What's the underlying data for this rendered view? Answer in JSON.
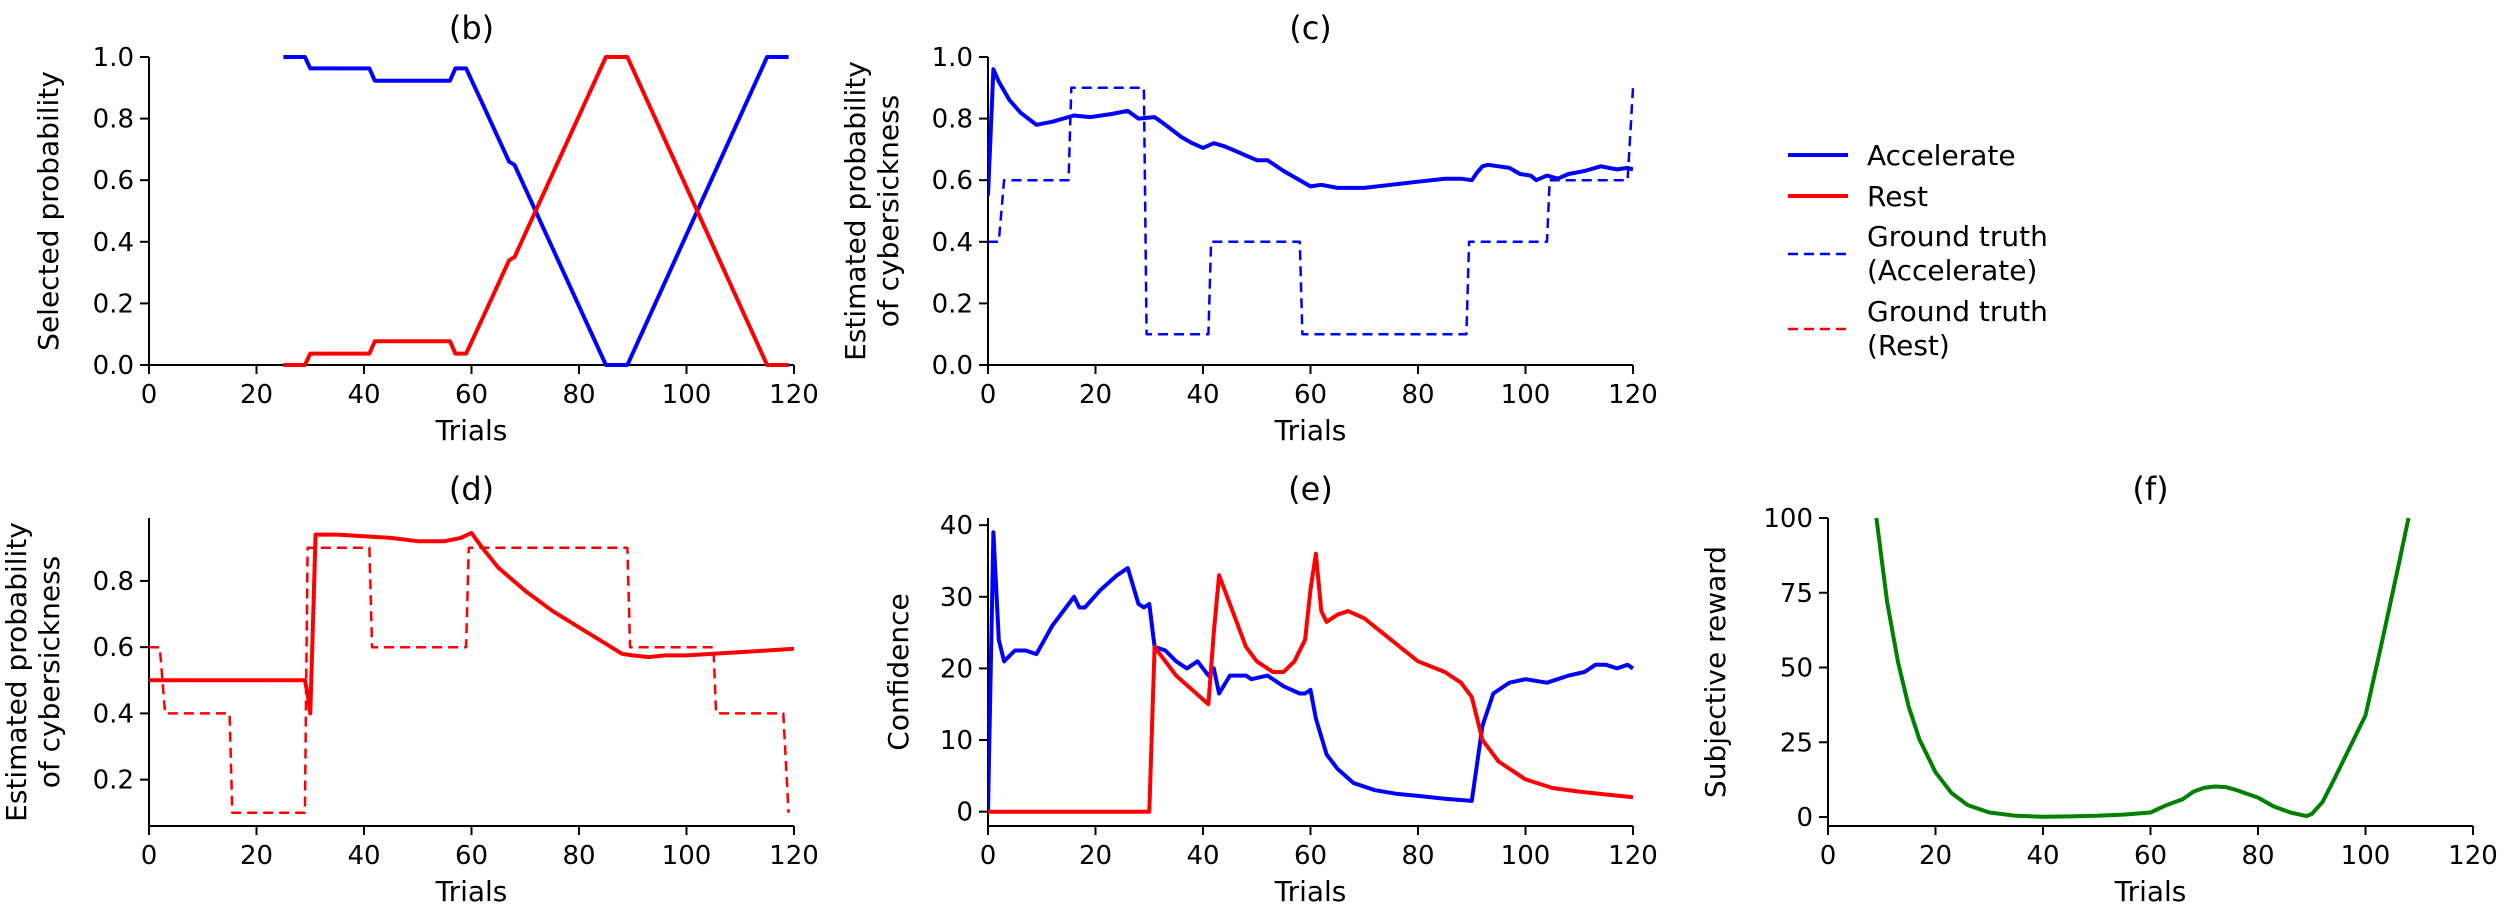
{
  "chart_data": [
    {
      "id": "b",
      "type": "line",
      "title": "(b)",
      "xlabel": "Trials",
      "ylabel": "Selected probability",
      "xlim": [
        0,
        120
      ],
      "ylim": [
        0,
        1
      ],
      "xticks": [
        "0",
        "20",
        "40",
        "60",
        "80",
        "100",
        "120"
      ],
      "yticks": [
        "0.0",
        "0.2",
        "0.4",
        "0.6",
        "0.8",
        "1.0"
      ],
      "series": [
        {
          "color": "#0000ff",
          "dash": "solid",
          "x": [
            25,
            29,
            30,
            41,
            42,
            56,
            57,
            59,
            62,
            67,
            68,
            85,
            89,
            115,
            119
          ],
          "y": [
            1.0,
            1.0,
            0.963,
            0.963,
            0.923,
            0.923,
            0.963,
            0.963,
            0.85,
            0.66,
            0.65,
            0.0,
            0.0,
            1.0,
            1.0
          ]
        },
        {
          "color": "#ff0000",
          "dash": "solid",
          "x": [
            25,
            29,
            30,
            41,
            42,
            56,
            57,
            59,
            62,
            67,
            68,
            85,
            89,
            115,
            119
          ],
          "y": [
            0.0,
            0.0,
            0.037,
            0.037,
            0.077,
            0.077,
            0.037,
            0.037,
            0.15,
            0.34,
            0.35,
            1.0,
            1.0,
            0.0,
            0.0
          ]
        }
      ]
    },
    {
      "id": "c",
      "type": "line",
      "title": "(c)",
      "xlabel": "Trials",
      "ylabel": [
        "Estimated probability",
        "of cybersickness"
      ],
      "xlim": [
        0,
        120
      ],
      "ylim": [
        0,
        1
      ],
      "xticks": [
        "0",
        "20",
        "40",
        "60",
        "80",
        "100",
        "120"
      ],
      "yticks": [
        "0.0",
        "0.2",
        "0.4",
        "0.6",
        "0.8",
        "1.0"
      ],
      "series": [
        {
          "color": "#0000ff",
          "dash": "solid",
          "x": [
            0,
            1,
            2,
            4,
            6,
            9,
            12,
            16,
            19,
            23,
            26,
            28,
            31,
            33,
            36,
            38,
            40,
            42,
            44,
            46,
            48,
            50,
            52,
            55,
            58,
            60,
            62,
            65,
            70,
            75,
            80,
            85,
            88,
            90,
            91,
            92,
            93,
            95,
            97,
            99,
            101,
            102,
            104,
            106,
            108,
            111,
            114,
            117,
            119,
            120
          ],
          "y": [
            0.55,
            0.96,
            0.92,
            0.86,
            0.82,
            0.78,
            0.79,
            0.81,
            0.805,
            0.815,
            0.825,
            0.8,
            0.805,
            0.78,
            0.74,
            0.72,
            0.705,
            0.72,
            0.71,
            0.695,
            0.68,
            0.665,
            0.665,
            0.63,
            0.6,
            0.58,
            0.585,
            0.575,
            0.575,
            0.585,
            0.595,
            0.605,
            0.605,
            0.6,
            0.625,
            0.645,
            0.65,
            0.645,
            0.64,
            0.62,
            0.615,
            0.6,
            0.615,
            0.605,
            0.62,
            0.63,
            0.645,
            0.635,
            0.64,
            0.635
          ]
        },
        {
          "color": "#0000ff",
          "dash": "dashed",
          "x": [
            0,
            2,
            3,
            15,
            15.5,
            29,
            29.5,
            41,
            41.5,
            58,
            58.5,
            89,
            89.5,
            104,
            104.5,
            119,
            120
          ],
          "y": [
            0.4,
            0.4,
            0.6,
            0.6,
            0.9,
            0.9,
            0.1,
            0.1,
            0.4,
            0.4,
            0.1,
            0.1,
            0.4,
            0.4,
            0.6,
            0.6,
            0.9
          ]
        }
      ]
    },
    {
      "id": "d",
      "type": "line",
      "title": "(d)",
      "xlabel": "Trials",
      "ylabel": [
        "Estimated probability",
        "of cybersickness"
      ],
      "xlim": [
        0,
        120
      ],
      "ylim": [
        0.06,
        0.99
      ],
      "xticks": [
        "0",
        "20",
        "40",
        "60",
        "80",
        "100",
        "120"
      ],
      "yticks": [
        "0.2",
        "0.4",
        "0.6",
        "0.8"
      ],
      "series": [
        {
          "color": "#ff0000",
          "dash": "solid",
          "x": [
            0,
            29,
            29.5,
            30,
            31,
            35,
            40,
            45,
            50,
            55,
            58,
            60,
            62,
            65,
            70,
            75,
            80,
            85,
            88,
            90,
            93,
            96,
            100,
            105,
            110,
            115,
            120
          ],
          "y": [
            0.5,
            0.5,
            0.46,
            0.4,
            0.94,
            0.94,
            0.935,
            0.93,
            0.92,
            0.92,
            0.93,
            0.945,
            0.9,
            0.84,
            0.77,
            0.71,
            0.66,
            0.61,
            0.58,
            0.575,
            0.57,
            0.575,
            0.575,
            0.58,
            0.585,
            0.59,
            0.595
          ]
        },
        {
          "color": "#ff0000",
          "dash": "dashed",
          "x": [
            0,
            2,
            3,
            15,
            15.5,
            29,
            29.5,
            41,
            41.5,
            59,
            59.5,
            89,
            89.5,
            105,
            105.5,
            118,
            119
          ],
          "y": [
            0.6,
            0.6,
            0.4,
            0.4,
            0.1,
            0.1,
            0.9,
            0.9,
            0.6,
            0.6,
            0.9,
            0.9,
            0.6,
            0.6,
            0.4,
            0.4,
            0.1
          ]
        }
      ]
    },
    {
      "id": "e",
      "type": "line",
      "title": "(e)",
      "xlabel": "Trials",
      "ylabel": "Confidence",
      "xlim": [
        0,
        120
      ],
      "ylim": [
        -2,
        41
      ],
      "xticks": [
        "0",
        "20",
        "40",
        "60",
        "80",
        "100",
        "120"
      ],
      "yticks": [
        "0",
        "10",
        "20",
        "30",
        "40"
      ],
      "series": [
        {
          "color": "#0000ff",
          "dash": "solid",
          "x": [
            0,
            1,
            2,
            3,
            5,
            7,
            9,
            12,
            15,
            16,
            17,
            18,
            21,
            24,
            26,
            28,
            29,
            30,
            31,
            33,
            35,
            37,
            39,
            41,
            42,
            43,
            45,
            48,
            49,
            52,
            55,
            58,
            59,
            60,
            61,
            63,
            65,
            68,
            72,
            76,
            80,
            85,
            90,
            92,
            94,
            97,
            100,
            104,
            108,
            111,
            113,
            115,
            117,
            119,
            120
          ],
          "y": [
            0,
            39,
            24,
            21,
            22.5,
            22.5,
            22,
            26,
            29,
            30,
            28.5,
            28.5,
            31,
            33,
            34,
            29,
            28.5,
            29,
            23,
            22.5,
            21,
            20,
            21,
            19,
            20,
            16.5,
            19,
            19,
            18.5,
            19,
            17.5,
            16.5,
            16.5,
            17,
            13,
            8,
            6,
            4,
            3,
            2.5,
            2.2,
            1.8,
            1.5,
            12,
            16.5,
            18,
            18.5,
            18,
            19,
            19.5,
            20.5,
            20.5,
            20,
            20.5,
            20
          ]
        },
        {
          "color": "#ff0000",
          "dash": "solid",
          "x": [
            0,
            30,
            31,
            33,
            35,
            38,
            41,
            42,
            43,
            45,
            48,
            50,
            53,
            55,
            57,
            59,
            60,
            61,
            62,
            63,
            65,
            67,
            70,
            75,
            80,
            85,
            88,
            90,
            92,
            95,
            100,
            105,
            110,
            115,
            120
          ],
          "y": [
            0,
            0,
            23,
            21,
            19,
            17,
            15,
            25,
            33,
            29,
            23,
            21,
            19.5,
            19.5,
            21,
            24,
            31,
            36,
            28,
            26.5,
            27.5,
            28,
            27,
            24,
            21,
            19.5,
            18,
            16,
            10,
            7,
            4.5,
            3.3,
            2.8,
            2.4,
            2.0
          ]
        }
      ]
    },
    {
      "id": "f",
      "type": "line",
      "title": "(f)",
      "xlabel": "Trials",
      "ylabel": "Subjective reward",
      "xlim": [
        0,
        120
      ],
      "ylim": [
        -3,
        100
      ],
      "xticks": [
        "0",
        "20",
        "40",
        "60",
        "80",
        "100",
        "120"
      ],
      "yticks": [
        "0",
        "25",
        "50",
        "75",
        "100"
      ],
      "series": [
        {
          "color": "#008000",
          "dash": "solid",
          "x": [
            9,
            11,
            13,
            15,
            17,
            20,
            23,
            26,
            30,
            35,
            40,
            45,
            50,
            55,
            60,
            63,
            66,
            68,
            70,
            72,
            74,
            76,
            80,
            83,
            86,
            89,
            90,
            92,
            94,
            97,
            100,
            103,
            106,
            108
          ],
          "y": [
            100,
            72,
            52,
            37,
            26,
            15,
            8,
            4,
            1.5,
            0.4,
            0.1,
            0.2,
            0.4,
            0.8,
            1.5,
            4,
            6,
            8.5,
            9.8,
            10.2,
            10,
            9,
            6.5,
            3.5,
            1.5,
            0.3,
            1,
            5,
            12,
            23,
            34,
            58,
            83,
            100
          ]
        }
      ]
    },
    {
      "id": "legend",
      "type": "legend",
      "entries": [
        {
          "label": "Accelerate",
          "color": "#0000ff",
          "dash": "solid"
        },
        {
          "label": "Rest",
          "color": "#ff0000",
          "dash": "solid"
        },
        {
          "label": [
            "Ground truth",
            "(Accelerate)"
          ],
          "color": "#0000ff",
          "dash": "dashed"
        },
        {
          "label": [
            "Ground truth",
            "(Rest)"
          ],
          "color": "#ff0000",
          "dash": "dashed"
        }
      ]
    }
  ]
}
